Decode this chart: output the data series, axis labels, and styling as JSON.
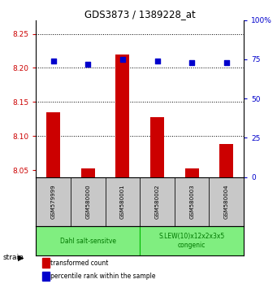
{
  "title": "GDS3873 / 1389228_at",
  "samples": [
    "GSM579999",
    "GSM580000",
    "GSM580001",
    "GSM580002",
    "GSM580003",
    "GSM580004"
  ],
  "red_values": [
    8.135,
    8.052,
    8.22,
    8.128,
    8.052,
    8.088
  ],
  "blue_values": [
    74,
    72,
    75,
    74,
    73,
    73
  ],
  "ylim_left": [
    8.04,
    8.27
  ],
  "ylim_right": [
    0,
    100
  ],
  "yticks_left": [
    8.05,
    8.1,
    8.15,
    8.2,
    8.25
  ],
  "yticks_right": [
    0,
    25,
    50,
    75,
    100
  ],
  "group_defs": [
    {
      "indices": [
        0,
        1,
        2
      ],
      "label": "Dahl salt-sensitve",
      "color": "#80EE80"
    },
    {
      "indices": [
        3,
        4,
        5
      ],
      "label": "S.LEW(10)x12x2x3x5\ncongenic",
      "color": "#80EE80"
    }
  ],
  "bar_color": "#CC0000",
  "dot_color": "#0000CC",
  "bar_bottom": 8.04,
  "legend_red": "transformed count",
  "legend_blue": "percentile rank within the sample",
  "strain_label": "strain",
  "left_tick_color": "#CC0000",
  "right_tick_color": "#0000CC",
  "sample_box_color": "#C8C8C8",
  "group_edge_color": "#00BB00",
  "group_text_color": "#007700"
}
